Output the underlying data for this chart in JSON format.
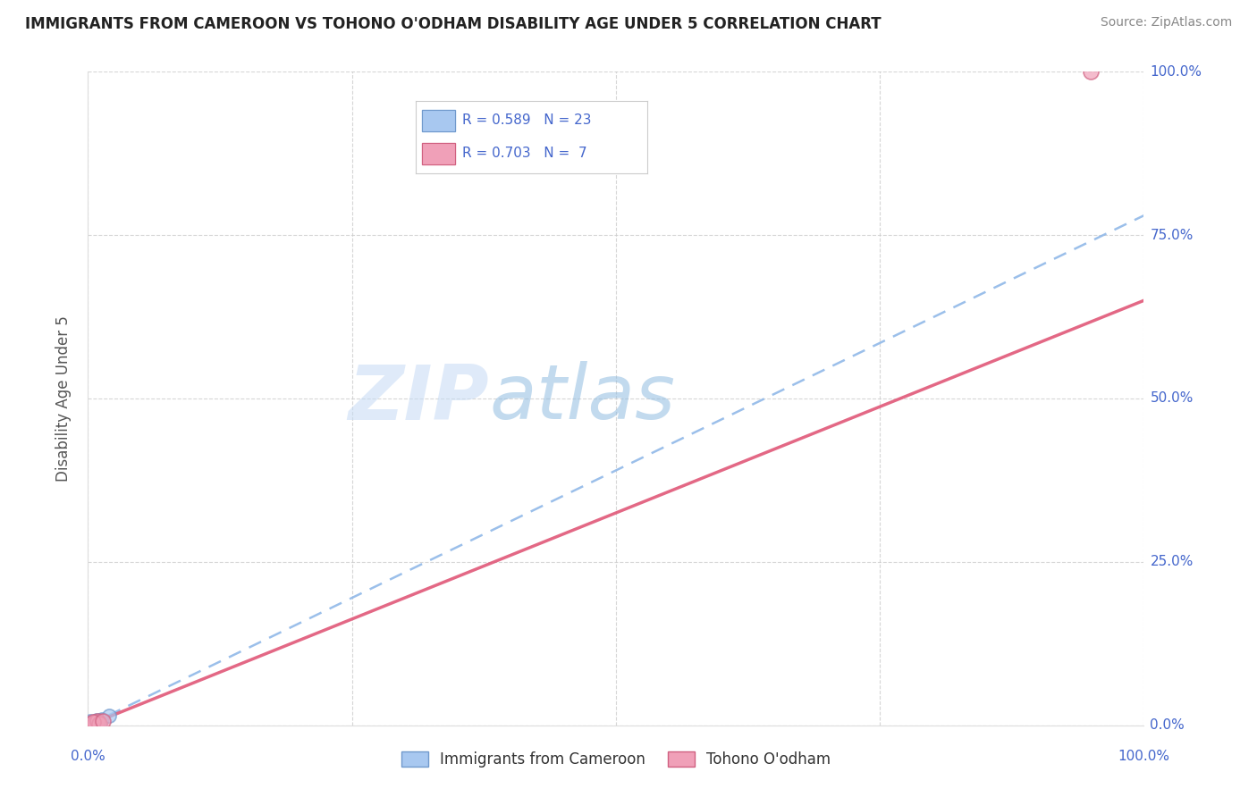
{
  "title": "IMMIGRANTS FROM CAMEROON VS TOHONO O'ODHAM DISABILITY AGE UNDER 5 CORRELATION CHART",
  "source": "Source: ZipAtlas.com",
  "ylabel": "Disability Age Under 5",
  "ylabel_ticks": [
    "0.0%",
    "25.0%",
    "50.0%",
    "75.0%",
    "100.0%"
  ],
  "ylabel_tick_vals": [
    0,
    25,
    50,
    75,
    100
  ],
  "xlim": [
    0,
    100
  ],
  "ylim": [
    0,
    100
  ],
  "cameroon_color": "#a8c8f0",
  "cameroon_line_color": "#90b8e8",
  "tohono_color": "#f0a0b8",
  "tohono_line_color": "#e05878",
  "R_cameroon": 0.589,
  "N_cameroon": 23,
  "R_tohono": 0.703,
  "N_tohono": 7,
  "cameroon_scatter_x": [
    0.2,
    0.4,
    0.6,
    0.8,
    1.0,
    1.2,
    0.3,
    0.5,
    0.7,
    0.9,
    1.1,
    0.4,
    0.6,
    0.8,
    1.0,
    0.2,
    0.5,
    0.7,
    0.9,
    1.3,
    0.3,
    0.6,
    2.0
  ],
  "cameroon_scatter_y": [
    0.3,
    0.5,
    0.4,
    0.7,
    0.6,
    0.8,
    0.2,
    0.4,
    0.6,
    0.5,
    0.7,
    0.3,
    0.5,
    0.8,
    0.4,
    0.6,
    0.3,
    0.7,
    0.5,
    0.9,
    0.4,
    0.2,
    1.5
  ],
  "tohono_scatter_x": [
    0.3,
    0.6,
    0.9,
    1.1,
    0.5,
    95.0,
    1.4
  ],
  "tohono_scatter_y": [
    0.2,
    0.4,
    0.6,
    0.3,
    0.5,
    100.0,
    0.7
  ],
  "cam_line_x0": 0,
  "cam_line_y0": 0,
  "cam_line_x1": 100,
  "cam_line_y1": 78,
  "toh_line_x0": 0,
  "toh_line_y0": 0,
  "toh_line_x1": 100,
  "toh_line_y1": 65,
  "background_color": "#ffffff",
  "grid_color": "#cccccc",
  "tick_label_color": "#4466cc",
  "axis_label_color": "#555555",
  "legend_text_color": "#4466cc"
}
